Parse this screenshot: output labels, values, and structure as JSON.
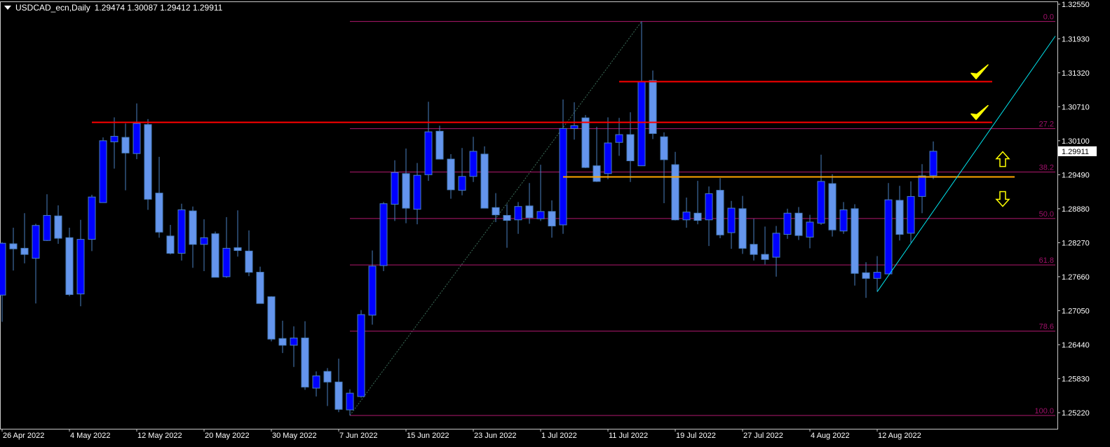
{
  "header": {
    "symbol": "USDCAD_ecn,Daily",
    "ohlc": "1.29474 1.30087 1.29412 1.29911",
    "menu_icon": "triangle-down-icon"
  },
  "colors": {
    "background": "#000000",
    "bull_body": "#0000FF",
    "bear_body": "#6495ED",
    "wick": "#4A7FC0",
    "fib": "#B0186E",
    "fib_label": "#A0106A",
    "resistance": "#FF0000",
    "pivot": "#FFA500",
    "trend": "#00E5EE",
    "fib_diagonal": "#3C6E5A",
    "marks": "#FFFF00",
    "axis_text": "#FFFFFF"
  },
  "chart_data": {
    "type": "candlestick",
    "symbol": "USDCAD_ecn",
    "timeframe": "Daily",
    "ylim": [
      1.2522,
      1.3255
    ],
    "yticks": [
      "1.32550",
      "1.31930",
      "1.31320",
      "1.30710",
      "1.30100",
      "1.29490",
      "1.28880",
      "1.28270",
      "1.27660",
      "1.27050",
      "1.26440",
      "1.25830",
      "1.25220"
    ],
    "current_price": "1.29911",
    "xticks": [
      {
        "date": "2022-04-26",
        "label": "26 Apr 2022"
      },
      {
        "date": "2022-05-04",
        "label": "4 May 2022"
      },
      {
        "date": "2022-05-12",
        "label": "12 May 2022"
      },
      {
        "date": "2022-05-20",
        "label": "20 May 2022"
      },
      {
        "date": "2022-05-30",
        "label": "30 May 2022"
      },
      {
        "date": "2022-06-07",
        "label": "7 Jun 2022"
      },
      {
        "date": "2022-06-15",
        "label": "15 Jun 2022"
      },
      {
        "date": "2022-06-23",
        "label": "23 Jun 2022"
      },
      {
        "date": "2022-07-01",
        "label": "1 Jul 2022"
      },
      {
        "date": "2022-07-11",
        "label": "11 Jul 2022"
      },
      {
        "date": "2022-07-19",
        "label": "19 Jul 2022"
      },
      {
        "date": "2022-07-27",
        "label": "27 Jul 2022"
      },
      {
        "date": "2022-08-04",
        "label": "4 Aug 2022"
      },
      {
        "date": "2022-08-12",
        "label": "12 Aug 2022"
      }
    ],
    "columns": [
      "date",
      "open",
      "high",
      "low",
      "close"
    ],
    "candles": [
      [
        "2022-04-26",
        1.2733,
        1.2828,
        1.2685,
        1.2826
      ],
      [
        "2022-04-27",
        1.2825,
        1.2854,
        1.2777,
        1.2816
      ],
      [
        "2022-04-28",
        1.2817,
        1.288,
        1.279,
        1.2806
      ],
      [
        "2022-04-29",
        1.2799,
        1.2861,
        1.2718,
        1.2858
      ],
      [
        "2022-05-02",
        1.2831,
        1.2914,
        1.283,
        1.2876
      ],
      [
        "2022-05-03",
        1.2875,
        1.2894,
        1.2825,
        1.2835
      ],
      [
        "2022-05-04",
        1.2836,
        1.2854,
        1.2731,
        1.2734
      ],
      [
        "2022-05-05",
        1.2735,
        1.2868,
        1.2713,
        1.2833
      ],
      [
        "2022-05-06",
        1.2833,
        1.2913,
        1.2812,
        1.2909
      ],
      [
        "2022-05-09",
        1.2899,
        1.3016,
        1.2899,
        1.301
      ],
      [
        "2022-05-10",
        1.3008,
        1.3052,
        1.296,
        1.3018
      ],
      [
        "2022-05-11",
        1.3016,
        1.3041,
        1.2921,
        1.2988
      ],
      [
        "2022-05-12",
        1.2987,
        1.3077,
        1.2977,
        1.3041
      ],
      [
        "2022-05-13",
        1.3039,
        1.3049,
        1.2886,
        1.2905
      ],
      [
        "2022-05-16",
        1.2916,
        1.2981,
        1.2836,
        1.2846
      ],
      [
        "2022-05-17",
        1.2839,
        1.2859,
        1.2806,
        1.2808
      ],
      [
        "2022-05-18",
        1.2808,
        1.2897,
        1.2795,
        1.2886
      ],
      [
        "2022-05-19",
        1.2884,
        1.2892,
        1.2782,
        1.2824
      ],
      [
        "2022-05-20",
        1.2824,
        1.2869,
        1.2776,
        1.2836
      ],
      [
        "2022-05-23",
        1.2843,
        1.2847,
        1.2765,
        1.2765
      ],
      [
        "2022-05-24",
        1.2766,
        1.2873,
        1.2764,
        1.2817
      ],
      [
        "2022-05-25",
        1.2818,
        1.2885,
        1.2802,
        1.2813
      ],
      [
        "2022-05-26",
        1.2812,
        1.2849,
        1.2767,
        1.2774
      ],
      [
        "2022-05-27",
        1.2774,
        1.2784,
        1.2718,
        1.2718
      ],
      [
        "2022-05-30",
        1.273,
        1.2731,
        1.265,
        1.2654
      ],
      [
        "2022-05-31",
        1.2655,
        1.2687,
        1.2629,
        1.2643
      ],
      [
        "2022-06-01",
        1.2643,
        1.2677,
        1.2604,
        1.2656
      ],
      [
        "2022-06-02",
        1.2656,
        1.2686,
        1.2563,
        1.2568
      ],
      [
        "2022-06-03",
        1.2566,
        1.2596,
        1.2551,
        1.2588
      ],
      [
        "2022-06-06",
        1.2596,
        1.2602,
        1.2534,
        1.2577
      ],
      [
        "2022-06-07",
        1.2577,
        1.2619,
        1.2523,
        1.2528
      ],
      [
        "2022-06-08",
        1.2527,
        1.2564,
        1.2517,
        1.2557
      ],
      [
        "2022-06-09",
        1.2551,
        1.2706,
        1.2549,
        1.2698
      ],
      [
        "2022-06-10",
        1.2697,
        1.2813,
        1.268,
        1.2785
      ],
      [
        "2022-06-13",
        1.2786,
        1.29,
        1.2776,
        1.2897
      ],
      [
        "2022-06-14",
        1.2896,
        1.2975,
        1.2866,
        1.2953
      ],
      [
        "2022-06-15",
        1.2951,
        1.2996,
        1.2862,
        1.2889
      ],
      [
        "2022-06-16",
        1.2887,
        1.297,
        1.286,
        1.2948
      ],
      [
        "2022-06-17",
        1.2949,
        1.308,
        1.2938,
        1.3026
      ],
      [
        "2022-06-20",
        1.3027,
        1.3037,
        1.2977,
        1.2977
      ],
      [
        "2022-06-21",
        1.2977,
        1.2986,
        1.2906,
        1.2922
      ],
      [
        "2022-06-22",
        1.2921,
        1.2997,
        1.2912,
        1.2946
      ],
      [
        "2022-06-23",
        1.2946,
        1.3017,
        1.2936,
        1.2991
      ],
      [
        "2022-06-24",
        1.2986,
        1.3,
        1.2889,
        1.2889
      ],
      [
        "2022-06-27",
        1.289,
        1.2916,
        1.2864,
        1.2877
      ],
      [
        "2022-06-28",
        1.2876,
        1.2896,
        1.2818,
        1.2867
      ],
      [
        "2022-06-29",
        1.2868,
        1.29,
        1.2843,
        1.2892
      ],
      [
        "2022-06-30",
        1.2893,
        1.2934,
        1.2861,
        1.2872
      ],
      [
        "2022-07-01",
        1.287,
        1.2967,
        1.2866,
        1.2883
      ],
      [
        "2022-07-04",
        1.2883,
        1.2903,
        1.2836,
        1.2857
      ],
      [
        "2022-07-05",
        1.2859,
        1.3084,
        1.2843,
        1.3032
      ],
      [
        "2022-07-06",
        1.3032,
        1.3079,
        1.3012,
        1.3037
      ],
      [
        "2022-07-07",
        1.3051,
        1.3056,
        1.2961,
        1.2962
      ],
      [
        "2022-07-08",
        1.2965,
        1.3035,
        1.2936,
        1.2937
      ],
      [
        "2022-07-11",
        1.2951,
        1.3052,
        1.2941,
        1.3006
      ],
      [
        "2022-07-12",
        1.3007,
        1.3051,
        1.2983,
        1.3021
      ],
      [
        "2022-07-13",
        1.3021,
        1.3061,
        1.2936,
        1.2974
      ],
      [
        "2022-07-14",
        1.2965,
        1.3224,
        1.2965,
        1.3116
      ],
      [
        "2022-07-15",
        1.3118,
        1.3136,
        1.3013,
        1.3023
      ],
      [
        "2022-07-18",
        1.3017,
        1.3025,
        1.2898,
        1.2976
      ],
      [
        "2022-07-19",
        1.2967,
        1.299,
        1.2867,
        1.2868
      ],
      [
        "2022-07-20",
        1.2868,
        1.2908,
        1.2854,
        1.2882
      ],
      [
        "2022-07-21",
        1.288,
        1.2938,
        1.286,
        1.2867
      ],
      [
        "2022-07-22",
        1.2868,
        1.2928,
        1.2821,
        1.2915
      ],
      [
        "2022-07-25",
        1.2921,
        1.2943,
        1.2835,
        1.2841
      ],
      [
        "2022-07-26",
        1.2845,
        1.2902,
        1.2816,
        1.2889
      ],
      [
        "2022-07-27",
        1.2888,
        1.2911,
        1.2807,
        1.2817
      ],
      [
        "2022-07-28",
        1.2824,
        1.287,
        1.2795,
        1.2806
      ],
      [
        "2022-07-29",
        1.2806,
        1.2856,
        1.2788,
        1.2797
      ],
      [
        "2022-08-01",
        1.2801,
        1.2857,
        1.2766,
        1.2844
      ],
      [
        "2022-08-02",
        1.2842,
        1.2888,
        1.2834,
        1.288
      ],
      [
        "2022-08-03",
        1.288,
        1.2891,
        1.2832,
        1.284
      ],
      [
        "2022-08-04",
        1.2837,
        1.2877,
        1.2817,
        1.2864
      ],
      [
        "2022-08-05",
        1.2862,
        1.2985,
        1.2859,
        1.2937
      ],
      [
        "2022-08-08",
        1.2933,
        1.295,
        1.2838,
        1.285
      ],
      [
        "2022-08-09",
        1.2848,
        1.29,
        1.2843,
        1.2886
      ],
      [
        "2022-08-10",
        1.2888,
        1.2896,
        1.275,
        1.2772
      ],
      [
        "2022-08-11",
        1.2773,
        1.2792,
        1.2728,
        1.2763
      ],
      [
        "2022-08-12",
        1.2763,
        1.2803,
        1.2739,
        1.2774
      ],
      [
        "2022-08-15",
        1.2771,
        1.2934,
        1.2771,
        1.2904
      ],
      [
        "2022-08-16",
        1.2903,
        1.2929,
        1.2831,
        1.2842
      ],
      [
        "2022-08-17",
        1.2844,
        1.2937,
        1.2827,
        1.291
      ],
      [
        "2022-08-18",
        1.291,
        1.2968,
        1.288,
        1.2947
      ],
      [
        "2022-08-19",
        1.29474,
        1.30087,
        1.29412,
        1.29911
      ]
    ],
    "fibonacci": {
      "from": {
        "date": "2022-06-08",
        "price": 1.2517
      },
      "to": {
        "date": "2022-07-14",
        "price": 1.3224
      },
      "levels": [
        {
          "label": "0.0",
          "ratio": 0.0
        },
        {
          "label": "27.2",
          "ratio": 0.272
        },
        {
          "label": "38.2",
          "ratio": 0.382
        },
        {
          "label": "50.0",
          "ratio": 0.5
        },
        {
          "label": "61.8",
          "ratio": 0.618
        },
        {
          "label": "78.6",
          "ratio": 0.786
        },
        {
          "label": "100.0",
          "ratio": 1.0
        }
      ]
    },
    "horizontal_lines": [
      {
        "kind": "resistance",
        "price": 1.3043,
        "from_date": "2022-05-06"
      },
      {
        "kind": "resistance",
        "price": 1.3116,
        "from_date": "2022-07-12"
      },
      {
        "kind": "pivot",
        "price": 1.2945,
        "from_date": "2022-07-05"
      }
    ],
    "trend_line": {
      "start": {
        "date": "2022-08-12",
        "price": 1.2739
      },
      "slope_per_bar": 0.00289
    },
    "annotations": [
      {
        "type": "check-mark",
        "near_price": 1.3116
      },
      {
        "type": "check-mark",
        "near_price": 1.3043
      },
      {
        "type": "arrow-up",
        "near_price": 1.297
      },
      {
        "type": "arrow-down",
        "near_price": 1.2925
      }
    ]
  }
}
